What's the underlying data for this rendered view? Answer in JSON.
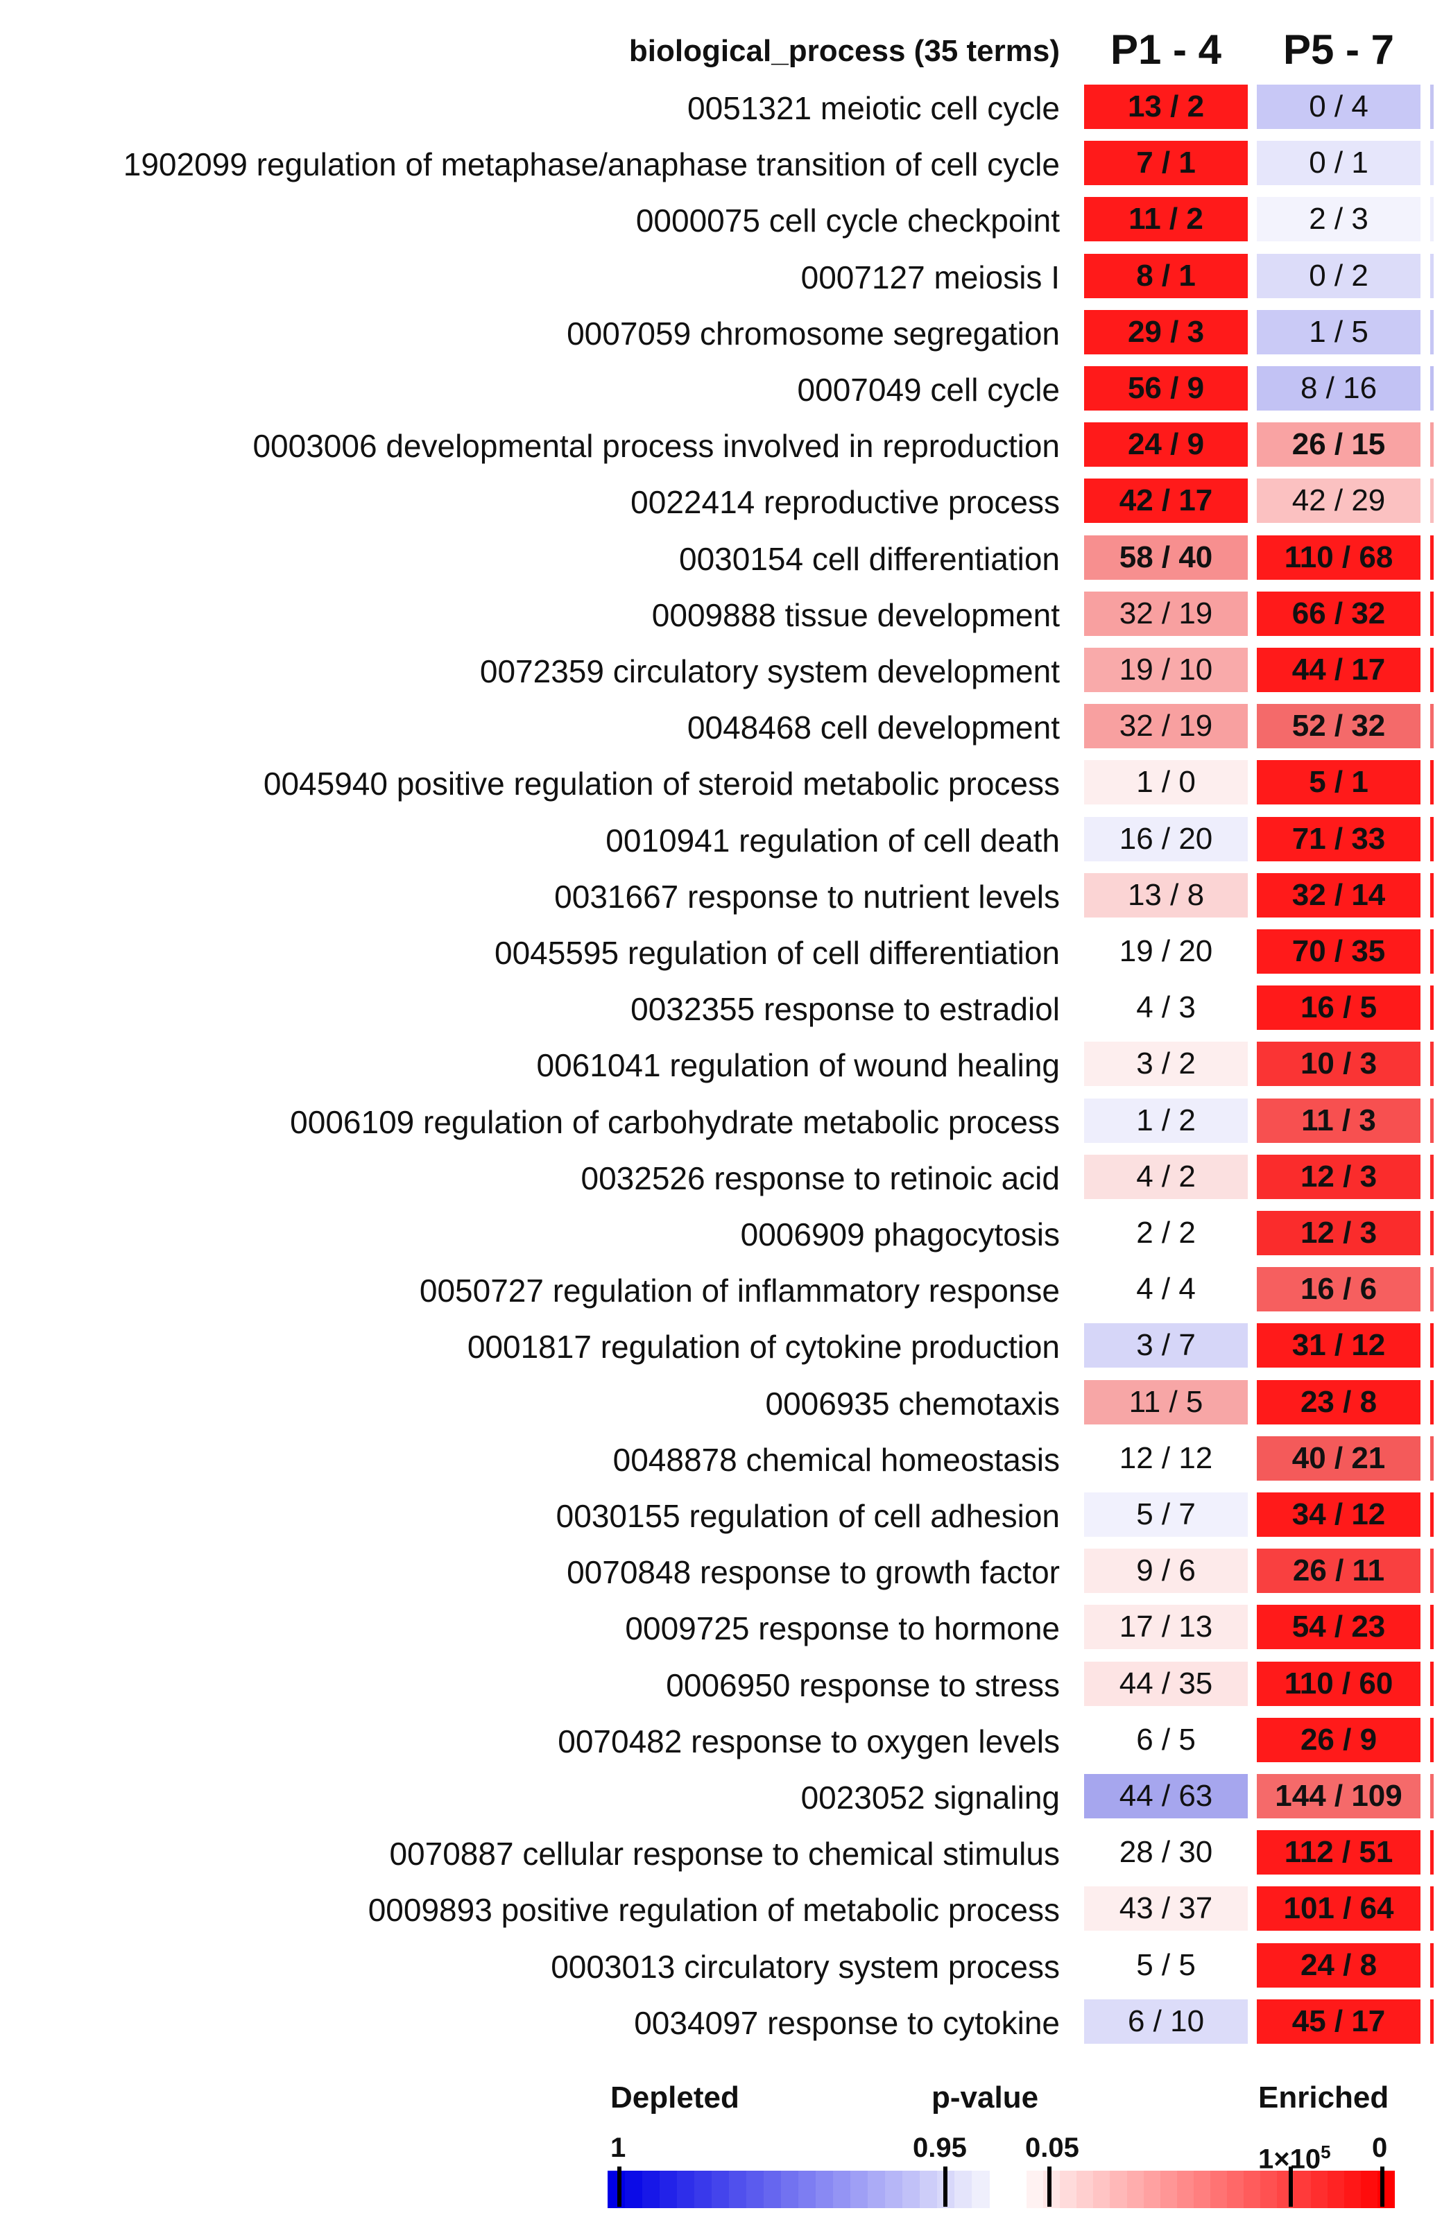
{
  "chart_data": {
    "type": "table",
    "title": "biological_process (35 terms)",
    "columns": [
      "P1 - 4",
      "P5 - 7"
    ],
    "rows": [
      {
        "label": "0051321 meiotic cell cycle",
        "cells": [
          {
            "text": "13 / 2",
            "bold": true,
            "color": "#ff1a1a"
          },
          {
            "text": "0 / 4",
            "bold": false,
            "color": "#c8c8f6"
          }
        ],
        "edge": "#c4c4f2"
      },
      {
        "label": "1902099 regulation of metaphase/anaphase transition of cell cycle",
        "cells": [
          {
            "text": "7 / 1",
            "bold": true,
            "color": "#ff1a1a"
          },
          {
            "text": "0 / 1",
            "bold": false,
            "color": "#e6e6fb"
          }
        ],
        "edge": "#e0e0fa"
      },
      {
        "label": "0000075 cell cycle checkpoint",
        "cells": [
          {
            "text": "11 / 2",
            "bold": true,
            "color": "#ff1a1a"
          },
          {
            "text": "2 / 3",
            "bold": false,
            "color": "#f3f3fd"
          }
        ],
        "edge": "#eeeefc"
      },
      {
        "label": "0007127 meiosis I",
        "cells": [
          {
            "text": "8 / 1",
            "bold": true,
            "color": "#ff1a1a"
          },
          {
            "text": "0 / 2",
            "bold": false,
            "color": "#dcdcf9"
          }
        ],
        "edge": "#d6d6f8"
      },
      {
        "label": "0007059 chromosome segregation",
        "cells": [
          {
            "text": "29 / 3",
            "bold": true,
            "color": "#ff1a1a"
          },
          {
            "text": "1 / 5",
            "bold": false,
            "color": "#cacaf6"
          }
        ],
        "edge": "#c6c6f4"
      },
      {
        "label": "0007049 cell cycle",
        "cells": [
          {
            "text": "56 / 9",
            "bold": true,
            "color": "#ff1a1a"
          },
          {
            "text": "8 / 16",
            "bold": false,
            "color": "#c2c2f4"
          }
        ],
        "edge": "#bebef2"
      },
      {
        "label": "0003006 developmental process involved in reproduction",
        "cells": [
          {
            "text": "24 / 9",
            "bold": true,
            "color": "#ff1a1a"
          },
          {
            "text": "26 / 15",
            "bold": true,
            "color": "#f9a3a3"
          }
        ],
        "edge": "#f7a0a0"
      },
      {
        "label": "0022414 reproductive process",
        "cells": [
          {
            "text": "42 / 17",
            "bold": true,
            "color": "#ff1a1a"
          },
          {
            "text": "42 / 29",
            "bold": false,
            "color": "#fbc1c1"
          }
        ],
        "edge": "#f9bdbd"
      },
      {
        "label": "0030154 cell differentiation",
        "cells": [
          {
            "text": "58 / 40",
            "bold": true,
            "color": "#f78f8f"
          },
          {
            "text": "110 / 68",
            "bold": true,
            "color": "#ff1a1a"
          }
        ],
        "edge": "#ff1a1a"
      },
      {
        "label": "0009888 tissue development",
        "cells": [
          {
            "text": "32 / 19",
            "bold": false,
            "color": "#f8a0a0"
          },
          {
            "text": "66 / 32",
            "bold": true,
            "color": "#ff1a1a"
          }
        ],
        "edge": "#ff1a1a"
      },
      {
        "label": "0072359 circulatory system development",
        "cells": [
          {
            "text": "19 / 10",
            "bold": false,
            "color": "#f9aaaa"
          },
          {
            "text": "44 / 17",
            "bold": true,
            "color": "#ff1a1a"
          }
        ],
        "edge": "#ff1a1a"
      },
      {
        "label": "0048468 cell development",
        "cells": [
          {
            "text": "32 / 19",
            "bold": false,
            "color": "#f8a0a0"
          },
          {
            "text": "52 / 32",
            "bold": true,
            "color": "#f46a6a"
          }
        ],
        "edge": "#f46a6a"
      },
      {
        "label": "0045940 positive regulation of steroid metabolic process",
        "cells": [
          {
            "text": "1 / 0",
            "bold": false,
            "color": "#fdeeee"
          },
          {
            "text": "5 / 1",
            "bold": true,
            "color": "#ff1a1a"
          }
        ],
        "edge": "#ff1a1a"
      },
      {
        "label": "0010941 regulation of cell death",
        "cells": [
          {
            "text": "16 / 20",
            "bold": false,
            "color": "#eeeefc"
          },
          {
            "text": "71 / 33",
            "bold": true,
            "color": "#ff1a1a"
          }
        ],
        "edge": "#ff1a1a"
      },
      {
        "label": "0031667 response to nutrient levels",
        "cells": [
          {
            "text": "13 / 8",
            "bold": false,
            "color": "#fbd4d4"
          },
          {
            "text": "32 / 14",
            "bold": true,
            "color": "#ff1a1a"
          }
        ],
        "edge": "#ff1a1a"
      },
      {
        "label": "0045595 regulation of cell differentiation",
        "cells": [
          {
            "text": "19 / 20",
            "bold": false,
            "color": "#ffffff"
          },
          {
            "text": "70 / 35",
            "bold": true,
            "color": "#ff1a1a"
          }
        ],
        "edge": "#ff1a1a"
      },
      {
        "label": "0032355 response to estradiol",
        "cells": [
          {
            "text": "4 / 3",
            "bold": false,
            "color": "#ffffff"
          },
          {
            "text": "16 / 5",
            "bold": true,
            "color": "#ff1a1a"
          }
        ],
        "edge": "#ff1a1a"
      },
      {
        "label": "0061041 regulation of wound healing",
        "cells": [
          {
            "text": "3 / 2",
            "bold": false,
            "color": "#fdeeee"
          },
          {
            "text": "10 / 3",
            "bold": true,
            "color": "#fa3434"
          }
        ],
        "edge": "#fa3434"
      },
      {
        "label": "0006109 regulation of carbohydrate metabolic process",
        "cells": [
          {
            "text": "1 / 2",
            "bold": false,
            "color": "#eeeefc"
          },
          {
            "text": "11 / 3",
            "bold": true,
            "color": "#f75050"
          }
        ],
        "edge": "#f75050"
      },
      {
        "label": "0032526 response to retinoic acid",
        "cells": [
          {
            "text": "4 / 2",
            "bold": false,
            "color": "#fbe0e0"
          },
          {
            "text": "12 / 3",
            "bold": true,
            "color": "#fa2c2c"
          }
        ],
        "edge": "#fa2c2c"
      },
      {
        "label": "0006909 phagocytosis",
        "cells": [
          {
            "text": "2 / 2",
            "bold": false,
            "color": "#ffffff"
          },
          {
            "text": "12 / 3",
            "bold": true,
            "color": "#fa2c2c"
          }
        ],
        "edge": "#fa2c2c"
      },
      {
        "label": "0050727 regulation of inflammatory response",
        "cells": [
          {
            "text": "4 / 4",
            "bold": false,
            "color": "#ffffff"
          },
          {
            "text": "16 / 6",
            "bold": true,
            "color": "#f65f5f"
          }
        ],
        "edge": "#f65f5f"
      },
      {
        "label": "0001817 regulation of cytokine production",
        "cells": [
          {
            "text": "3 / 7",
            "bold": false,
            "color": "#d6d6f8"
          },
          {
            "text": "31 / 12",
            "bold": true,
            "color": "#ff1a1a"
          }
        ],
        "edge": "#ff1a1a"
      },
      {
        "label": "0006935 chemotaxis",
        "cells": [
          {
            "text": "11 / 5",
            "bold": false,
            "color": "#f7a6a6"
          },
          {
            "text": "23 / 8",
            "bold": true,
            "color": "#ff1a1a"
          }
        ],
        "edge": "#ff1a1a"
      },
      {
        "label": "0048878 chemical homeostasis",
        "cells": [
          {
            "text": "12 / 12",
            "bold": false,
            "color": "#ffffff"
          },
          {
            "text": "40 / 21",
            "bold": true,
            "color": "#f45a5a"
          }
        ],
        "edge": "#f45a5a"
      },
      {
        "label": "0030155 regulation of cell adhesion",
        "cells": [
          {
            "text": "5 / 7",
            "bold": false,
            "color": "#f1f1fd"
          },
          {
            "text": "34 / 12",
            "bold": true,
            "color": "#ff1a1a"
          }
        ],
        "edge": "#ff1a1a"
      },
      {
        "label": "0070848 response to growth factor",
        "cells": [
          {
            "text": "9 / 6",
            "bold": false,
            "color": "#fdeaea"
          },
          {
            "text": "26 / 11",
            "bold": true,
            "color": "#f94040"
          }
        ],
        "edge": "#f94040"
      },
      {
        "label": "0009725 response to hormone",
        "cells": [
          {
            "text": "17 / 13",
            "bold": false,
            "color": "#fdeaea"
          },
          {
            "text": "54 / 23",
            "bold": true,
            "color": "#ff1a1a"
          }
        ],
        "edge": "#ff1a1a"
      },
      {
        "label": "0006950 response to stress",
        "cells": [
          {
            "text": "44 / 35",
            "bold": false,
            "color": "#fde4e4"
          },
          {
            "text": "110 / 60",
            "bold": true,
            "color": "#ff1a1a"
          }
        ],
        "edge": "#ff1a1a"
      },
      {
        "label": "0070482 response to oxygen levels",
        "cells": [
          {
            "text": "6 / 5",
            "bold": false,
            "color": "#ffffff"
          },
          {
            "text": "26 / 9",
            "bold": true,
            "color": "#ff1a1a"
          }
        ],
        "edge": "#ff1a1a"
      },
      {
        "label": "0023052 signaling",
        "cells": [
          {
            "text": "44 / 63",
            "bold": false,
            "color": "#a6a6ee"
          },
          {
            "text": "144 / 109",
            "bold": true,
            "color": "#f56a6a"
          }
        ],
        "edge": "#f56a6a"
      },
      {
        "label": "0070887 cellular response to chemical stimulus",
        "cells": [
          {
            "text": "28 / 30",
            "bold": false,
            "color": "#ffffff"
          },
          {
            "text": "112 / 51",
            "bold": true,
            "color": "#ff1a1a"
          }
        ],
        "edge": "#ff1a1a"
      },
      {
        "label": "0009893 positive regulation of metabolic process",
        "cells": [
          {
            "text": "43 / 37",
            "bold": false,
            "color": "#fdeeee"
          },
          {
            "text": "101 / 64",
            "bold": true,
            "color": "#ff1a1a"
          }
        ],
        "edge": "#ff1a1a"
      },
      {
        "label": "0003013 circulatory system process",
        "cells": [
          {
            "text": "5 / 5",
            "bold": false,
            "color": "#ffffff"
          },
          {
            "text": "24 / 8",
            "bold": true,
            "color": "#ff1a1a"
          }
        ],
        "edge": "#ff1a1a"
      },
      {
        "label": "0034097 response to cytokine",
        "cells": [
          {
            "text": "6 / 10",
            "bold": false,
            "color": "#dcdcf9"
          },
          {
            "text": "45 / 17",
            "bold": true,
            "color": "#ff1a1a"
          }
        ],
        "edge": "#ff1a1a"
      }
    ],
    "legend": {
      "depleted_label": "Depleted",
      "pvalue_label": "p-value",
      "enriched_label": "Enriched",
      "tick_1": "1",
      "tick_095": "0.95",
      "tick_005": "0.05",
      "tick_1e5_base": "1×10",
      "tick_1e5_exp": "5",
      "tick_0": "0",
      "depleted_color_start": "#0000e6",
      "depleted_color_end": "#efeffc",
      "enriched_color_start": "#fff2f2",
      "enriched_color_end": "#ff0000"
    }
  }
}
